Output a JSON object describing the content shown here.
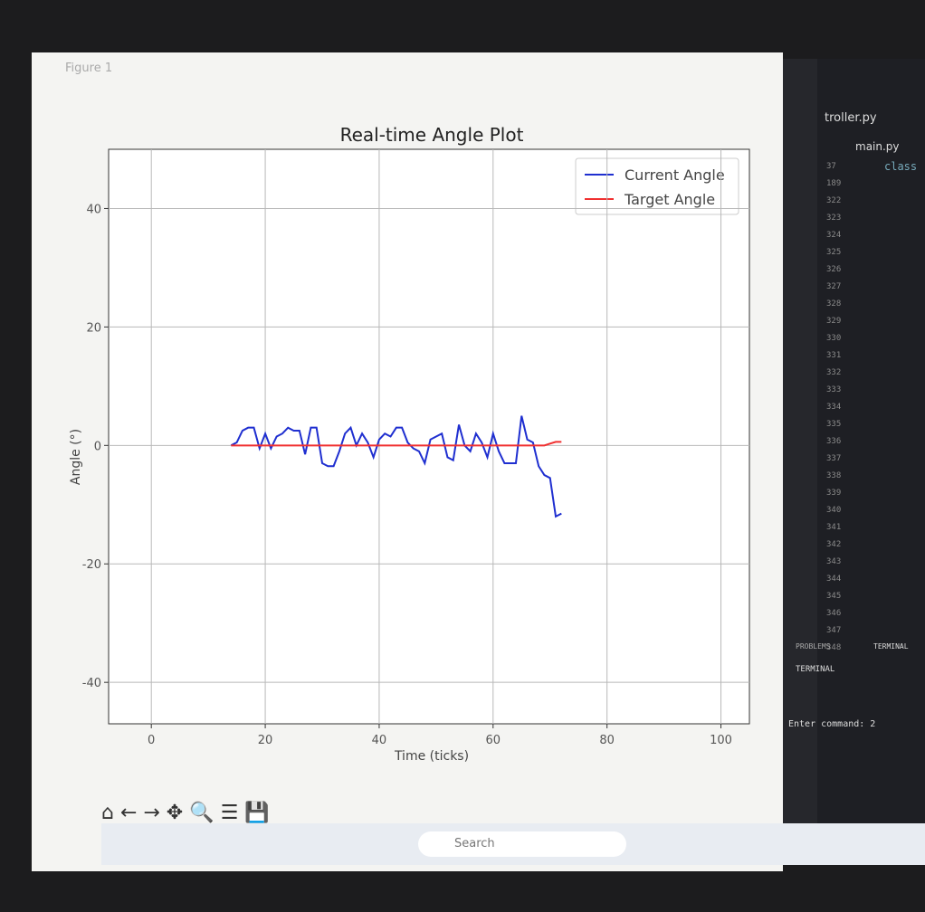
{
  "window_title": "Figure 1",
  "chart_data": {
    "type": "line",
    "title": "Real-time Angle Plot",
    "xlabel": "Time (ticks)",
    "ylabel": "Angle (°)",
    "x": [
      14,
      15,
      16,
      17,
      18,
      19,
      20,
      21,
      22,
      23,
      24,
      25,
      26,
      27,
      28,
      29,
      30,
      31,
      32,
      33,
      34,
      35,
      36,
      37,
      38,
      39,
      40,
      41,
      42,
      43,
      44,
      45,
      46,
      47,
      48,
      49,
      50,
      51,
      52,
      53,
      54,
      55,
      56,
      57,
      58,
      59,
      60,
      61,
      62,
      63,
      64,
      65,
      66,
      67,
      68,
      69,
      70,
      71,
      72
    ],
    "series": [
      {
        "name": "Current Angle",
        "color": "#1f2fd0",
        "values": [
          0,
          0.5,
          2.5,
          3,
          3,
          -0.5,
          2,
          -0.5,
          1.5,
          2,
          3,
          2.5,
          2.5,
          -1.5,
          3,
          3,
          -3,
          -3.5,
          -3.5,
          -1,
          2,
          3,
          0,
          2,
          0.5,
          -2,
          1,
          2,
          1.5,
          3,
          3,
          0.5,
          -0.5,
          -1,
          -3,
          1,
          1.5,
          2,
          -2,
          -2.5,
          3.5,
          0,
          -1,
          2,
          0.5,
          -2,
          2,
          -1,
          -3,
          -3,
          -3,
          5,
          1,
          0.5,
          -3.5,
          -5,
          -5.5,
          -12,
          -11.5
        ]
      },
      {
        "name": "Target Angle",
        "color": "#f03030",
        "values": [
          0,
          0,
          0,
          0,
          0,
          0,
          0,
          0,
          0,
          0,
          0,
          0,
          0,
          0,
          0,
          0,
          0,
          0,
          0,
          0,
          0,
          0,
          0,
          0,
          0,
          0,
          0,
          0,
          0,
          0,
          0,
          0,
          0,
          0,
          0,
          0,
          0,
          0,
          0,
          0,
          0,
          0,
          0,
          0,
          0,
          0,
          0,
          0,
          0,
          0,
          0,
          0,
          0,
          0,
          0,
          0,
          0.3,
          0.6,
          0.6
        ]
      }
    ],
    "xlim": [
      -7.5,
      105
    ],
    "ylim": [
      -47,
      50
    ],
    "xticks": [
      0,
      20,
      40,
      60,
      80,
      100
    ],
    "yticks": [
      -40,
      -20,
      0,
      20,
      40
    ],
    "grid": true,
    "legend": "upper right"
  },
  "editor": {
    "tab": "troller.py",
    "breadcrumb": "main.py",
    "code": "class",
    "line_numbers": [
      "37",
      "189",
      "322",
      "323",
      "324",
      "325",
      "326",
      "327",
      "328",
      "329",
      "330",
      "331",
      "332",
      "333",
      "334",
      "335",
      "336",
      "337",
      "338",
      "339",
      "340",
      "341",
      "342",
      "343",
      "344",
      "345",
      "346",
      "347",
      "348"
    ],
    "panel_tabs": [
      "PROBLEMS",
      "TERMINAL"
    ],
    "terminal_title": "TERMINAL",
    "terminal": "Enter command: 2"
  },
  "taskbar": {
    "search": "Search"
  }
}
